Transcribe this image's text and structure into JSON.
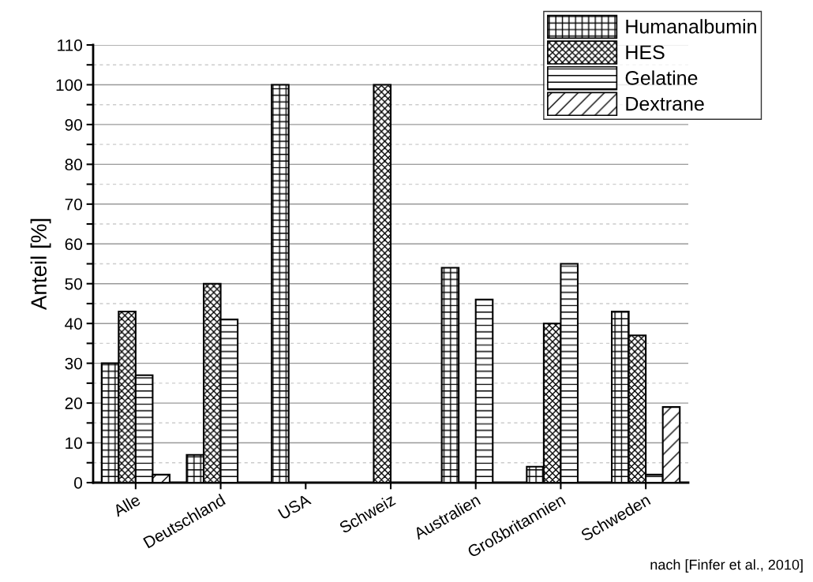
{
  "chart_data": {
    "type": "bar",
    "ylabel": "Anteil [%]",
    "categories": [
      "Alle",
      "Deutschland",
      "USA",
      "Schweiz",
      "Australien",
      "Großbritannien",
      "Schweden"
    ],
    "series": [
      {
        "name": "Humanalbumin",
        "color": "#000000",
        "values": [
          30,
          7,
          100,
          0,
          54,
          4,
          43
        ]
      },
      {
        "name": "HES",
        "color": "#000000",
        "values": [
          43,
          50,
          0,
          100,
          0,
          40,
          37
        ]
      },
      {
        "name": "Gelatine",
        "color": "#000000",
        "values": [
          27,
          41,
          0,
          0,
          46,
          55,
          2
        ]
      },
      {
        "name": "Dextrane",
        "color": "#000000",
        "values": [
          2,
          0,
          0,
          0,
          0,
          0,
          19
        ]
      }
    ],
    "ylim": [
      0,
      110
    ],
    "yticks": [
      0,
      {
        "value": 5,
        "label": null
      },
      10,
      {
        "value": 15,
        "label": null
      },
      20,
      {
        "value": 25,
        "label": null
      },
      30,
      {
        "value": 35,
        "label": null
      },
      40,
      {
        "value": 45,
        "label": null
      },
      50,
      {
        "value": 55,
        "label": null
      },
      60,
      {
        "value": 65,
        "label": null
      },
      70,
      {
        "value": 75,
        "label": null
      },
      80,
      {
        "value": 85,
        "label": null
      },
      90,
      {
        "value": 95,
        "label": null
      },
      100,
      {
        "value": 105,
        "label": null
      },
      110
    ],
    "grid": "y",
    "legend": "top right",
    "annotations": [
      "nach [Finfer et al., 2010]"
    ]
  }
}
